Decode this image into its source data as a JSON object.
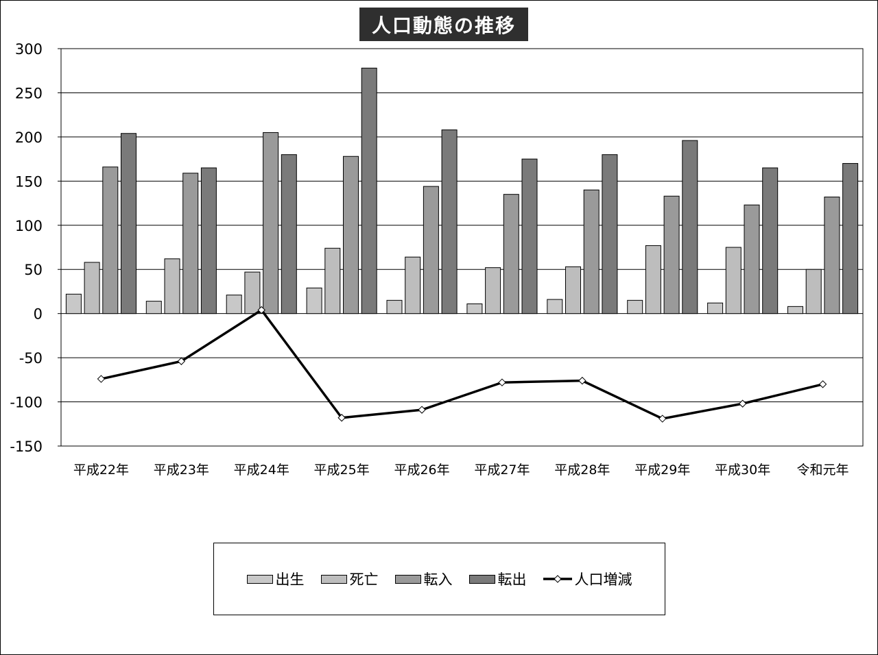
{
  "chart_data": {
    "type": "bar",
    "title": "人口動態の推移",
    "categories": [
      "平成22年",
      "平成23年",
      "平成24年",
      "平成25年",
      "平成26年",
      "平成27年",
      "平成28年",
      "平成29年",
      "平成30年",
      "令和元年"
    ],
    "series": [
      {
        "name": "出生",
        "kind": "bar",
        "color": "#c8c8c8",
        "values": [
          22,
          14,
          21,
          29,
          15,
          11,
          16,
          15,
          12,
          8
        ]
      },
      {
        "name": "死亡",
        "kind": "bar",
        "color": "#bdbdbd",
        "values": [
          58,
          62,
          47,
          74,
          64,
          52,
          53,
          77,
          75,
          50
        ]
      },
      {
        "name": "転入",
        "kind": "bar",
        "color": "#9a9a9a",
        "values": [
          166,
          159,
          205,
          178,
          144,
          135,
          140,
          133,
          123,
          132
        ]
      },
      {
        "name": "転出",
        "kind": "bar",
        "color": "#7a7a7a",
        "values": [
          204,
          165,
          180,
          278,
          208,
          175,
          180,
          196,
          165,
          170
        ]
      },
      {
        "name": "人口増減",
        "kind": "line",
        "color": "#000000",
        "values": [
          -74,
          -54,
          4,
          -118,
          -109,
          -78,
          -76,
          -119,
          -102,
          -80
        ]
      }
    ],
    "ylim": [
      -150,
      300
    ],
    "yticks": [
      300,
      250,
      200,
      150,
      100,
      50,
      0,
      -50,
      -100,
      -150
    ],
    "grid": true,
    "legend_position": "bottom"
  }
}
